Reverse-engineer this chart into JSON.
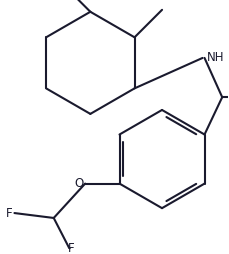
{
  "bg_color": "#ffffff",
  "line_color": "#1a1a2e",
  "line_width": 1.5,
  "text_color": "#1a1a2e",
  "font_size": 8.5,
  "figsize": [
    2.3,
    2.54
  ],
  "dpi": 100,
  "NH_label": "NH",
  "F1_label": "F",
  "F2_label": "F",
  "O_label": "O"
}
